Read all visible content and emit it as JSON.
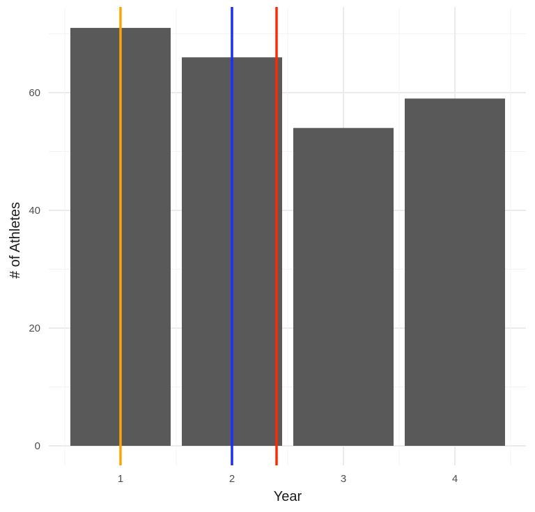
{
  "chart_data": {
    "type": "bar",
    "title": "",
    "xlabel": "Year",
    "ylabel": "# of Athletes",
    "categories": [
      "1",
      "2",
      "3",
      "4"
    ],
    "values": [
      71,
      66,
      54,
      59
    ],
    "ylim": [
      0,
      74.5
    ],
    "yticks": [
      0,
      20,
      40,
      60
    ],
    "grid": true,
    "bar_color": "#595959",
    "vlines": [
      {
        "x": 1,
        "color": "#FFA500"
      },
      {
        "x": 2,
        "color": "#1A2EFF"
      },
      {
        "x": 2.4,
        "color": "#FF2A00"
      }
    ],
    "legend": null
  }
}
